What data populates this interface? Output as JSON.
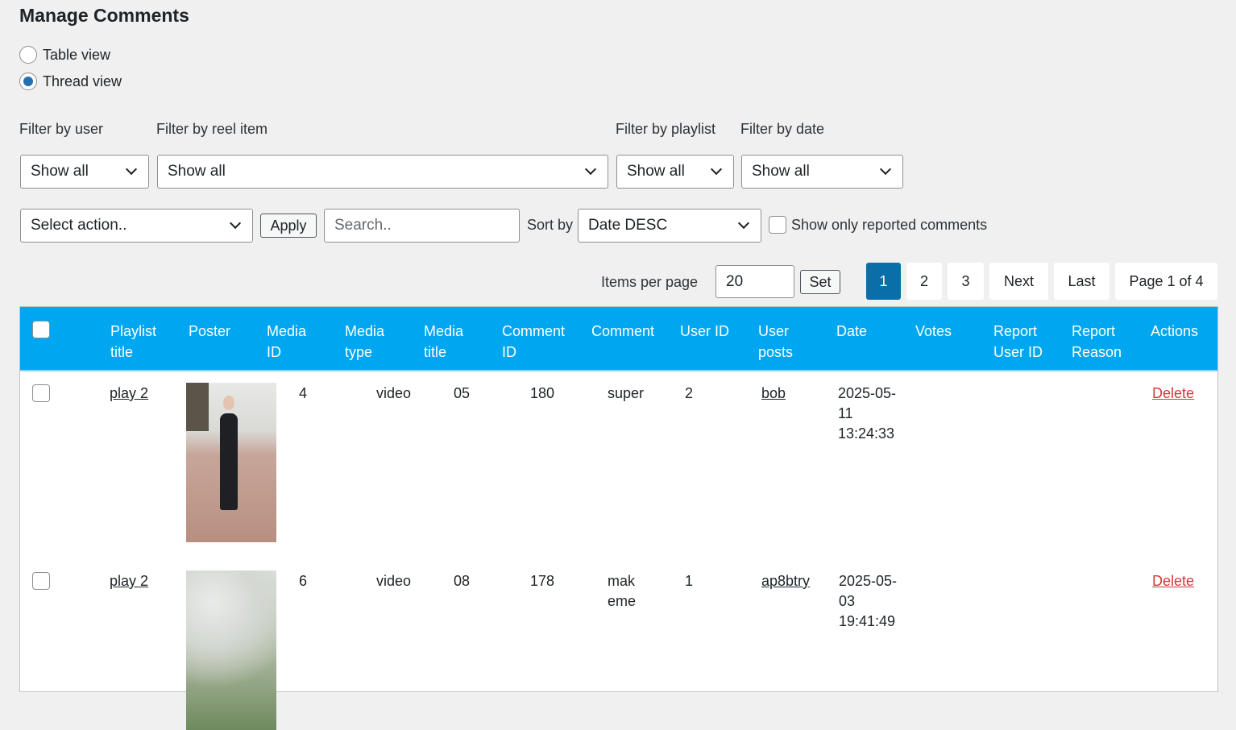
{
  "title": "Manage Comments",
  "view_options": [
    {
      "label": "Table view",
      "selected": false
    },
    {
      "label": "Thread view",
      "selected": true
    }
  ],
  "filters": {
    "user": {
      "label": "Filter by user",
      "value": "Show all"
    },
    "reel": {
      "label": "Filter by reel item",
      "value": "Show all"
    },
    "playlist": {
      "label": "Filter by playlist",
      "value": "Show all"
    },
    "date": {
      "label": "Filter by date",
      "value": "Show all"
    }
  },
  "bulk": {
    "action_value": "Select action..",
    "apply_label": "Apply"
  },
  "search": {
    "placeholder": "Search.."
  },
  "sort": {
    "label": "Sort by",
    "value": "Date DESC"
  },
  "reported": {
    "label": "Show only reported comments",
    "checked": false
  },
  "pagination": {
    "items_label": "Items per page",
    "items_value": "20",
    "set_label": "Set",
    "pages": [
      "1",
      "2",
      "3"
    ],
    "current": "1",
    "next": "Next",
    "last": "Last",
    "info": "Page 1 of 4"
  },
  "accent_color": "#00a6f0",
  "columns": [
    "Playlist title",
    "Poster",
    "Media ID",
    "Media type",
    "Media title",
    "Comment ID",
    "Comment",
    "User ID",
    "User posts",
    "Date",
    "Votes",
    "Report User ID",
    "Report Reason",
    "Actions"
  ],
  "rows": [
    {
      "playlist": "play 2",
      "poster": "woman standing on boardwalk",
      "media_id": "4",
      "media_type": "video",
      "media_title": "05",
      "comment_id": "180",
      "comment": "super",
      "user_id": "2",
      "user_posts": "bob",
      "date": "2025-05-11 13:24:33",
      "votes": "",
      "report_user": "",
      "report_reason": "",
      "action": "Delete"
    },
    {
      "playlist": "play 2",
      "poster": "misty green leaves",
      "media_id": "6",
      "media_type": "video",
      "media_title": "08",
      "comment_id": "178",
      "comment": "mak eme",
      "user_id": "1",
      "user_posts": "ap8btry",
      "date": "2025-05-03 19:41:49",
      "votes": "",
      "report_user": "",
      "report_reason": "",
      "action": "Delete"
    }
  ]
}
